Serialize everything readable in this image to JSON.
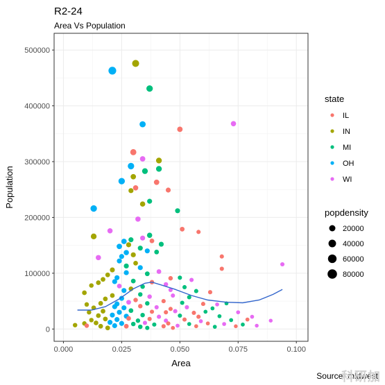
{
  "title": "R2-24",
  "subtitle": "Area Vs Population",
  "caption": "Source: midwest",
  "watermark": "科研加",
  "chart_data": {
    "type": "scatter",
    "xlabel": "Area",
    "ylabel": "Population",
    "xlim": [
      -0.004,
      0.105
    ],
    "ylim": [
      -22000,
      530000
    ],
    "x_ticks": [
      0.0,
      0.025,
      0.05,
      0.075,
      0.1
    ],
    "x_tick_labels": [
      "0.000",
      "0.025",
      "0.050",
      "0.075",
      "0.100"
    ],
    "y_ticks": [
      0,
      100000,
      200000,
      300000,
      400000,
      500000
    ],
    "y_tick_labels": [
      "0",
      "100000",
      "200000",
      "300000",
      "400000",
      "500000"
    ],
    "grid": true,
    "legend_position": "right",
    "color_legend": {
      "title": "state",
      "entries": [
        {
          "name": "IL",
          "color": "#F8766D"
        },
        {
          "name": "IN",
          "color": "#A3A500"
        },
        {
          "name": "MI",
          "color": "#00BF7D"
        },
        {
          "name": "OH",
          "color": "#00B0F6"
        },
        {
          "name": "WI",
          "color": "#E76BF3"
        }
      ]
    },
    "size_legend": {
      "title": "popdensity",
      "breaks": [
        20000,
        40000,
        60000,
        80000
      ],
      "labels": [
        "20000",
        "40000",
        "60000",
        "80000"
      ]
    },
    "smooth_color": "#3366CC",
    "smooth": [
      {
        "x": 0.006,
        "y": 34000
      },
      {
        "x": 0.012,
        "y": 34000
      },
      {
        "x": 0.018,
        "y": 40000
      },
      {
        "x": 0.024,
        "y": 54000
      },
      {
        "x": 0.03,
        "y": 72000
      },
      {
        "x": 0.035,
        "y": 82000
      },
      {
        "x": 0.038,
        "y": 84000
      },
      {
        "x": 0.042,
        "y": 79000
      },
      {
        "x": 0.048,
        "y": 71000
      },
      {
        "x": 0.055,
        "y": 60000
      },
      {
        "x": 0.062,
        "y": 52000
      },
      {
        "x": 0.07,
        "y": 48000
      },
      {
        "x": 0.077,
        "y": 47000
      },
      {
        "x": 0.084,
        "y": 52000
      },
      {
        "x": 0.09,
        "y": 62000
      },
      {
        "x": 0.094,
        "y": 71000
      }
    ],
    "points": [
      {
        "state": "OH",
        "x": 0.021,
        "y": 463000,
        "d": 60000
      },
      {
        "state": "IN",
        "x": 0.031,
        "y": 476000,
        "d": 45000
      },
      {
        "state": "MI",
        "x": 0.037,
        "y": 431000,
        "d": 35000
      },
      {
        "state": "OH",
        "x": 0.034,
        "y": 367000,
        "d": 30000
      },
      {
        "state": "IL",
        "x": 0.05,
        "y": 358000,
        "d": 20000
      },
      {
        "state": "WI",
        "x": 0.073,
        "y": 368000,
        "d": 18000
      },
      {
        "state": "IL",
        "x": 0.03,
        "y": 317000,
        "d": 30000
      },
      {
        "state": "IN",
        "x": 0.041,
        "y": 302000,
        "d": 25000
      },
      {
        "state": "WI",
        "x": 0.034,
        "y": 305000,
        "d": 20000
      },
      {
        "state": "OH",
        "x": 0.029,
        "y": 292000,
        "d": 35000
      },
      {
        "state": "MI",
        "x": 0.035,
        "y": 283000,
        "d": 25000
      },
      {
        "state": "MI",
        "x": 0.041,
        "y": 287000,
        "d": 25000
      },
      {
        "state": "IN",
        "x": 0.03,
        "y": 273000,
        "d": 20000
      },
      {
        "state": "OH",
        "x": 0.025,
        "y": 265000,
        "d": 35000
      },
      {
        "state": "IL",
        "x": 0.04,
        "y": 263000,
        "d": 20000
      },
      {
        "state": "IL",
        "x": 0.031,
        "y": 253000,
        "d": 18000
      },
      {
        "state": "IN",
        "x": 0.029,
        "y": 248000,
        "d": 15000
      },
      {
        "state": "IL",
        "x": 0.045,
        "y": 249000,
        "d": 15000
      },
      {
        "state": "MI",
        "x": 0.037,
        "y": 229000,
        "d": 15000
      },
      {
        "state": "IN",
        "x": 0.034,
        "y": 224000,
        "d": 18000
      },
      {
        "state": "OH",
        "x": 0.013,
        "y": 216000,
        "d": 35000
      },
      {
        "state": "MI",
        "x": 0.049,
        "y": 212000,
        "d": 15000
      },
      {
        "state": "WI",
        "x": 0.032,
        "y": 197000,
        "d": 18000
      },
      {
        "state": "IL",
        "x": 0.051,
        "y": 179000,
        "d": 12000
      },
      {
        "state": "IL",
        "x": 0.058,
        "y": 174000,
        "d": 8000
      },
      {
        "state": "WI",
        "x": 0.02,
        "y": 176000,
        "d": 18000
      },
      {
        "state": "IN",
        "x": 0.013,
        "y": 166000,
        "d": 25000
      },
      {
        "state": "MI",
        "x": 0.037,
        "y": 168000,
        "d": 18000
      },
      {
        "state": "OH",
        "x": 0.026,
        "y": 157000,
        "d": 20000
      },
      {
        "state": "MI",
        "x": 0.029,
        "y": 160000,
        "d": 15000
      },
      {
        "state": "WI",
        "x": 0.034,
        "y": 163000,
        "d": 15000
      },
      {
        "state": "IL",
        "x": 0.038,
        "y": 158000,
        "d": 12000
      },
      {
        "state": "OH",
        "x": 0.024,
        "y": 148000,
        "d": 20000
      },
      {
        "state": "IN",
        "x": 0.028,
        "y": 151000,
        "d": 15000
      },
      {
        "state": "MI",
        "x": 0.033,
        "y": 145000,
        "d": 15000
      },
      {
        "state": "MI",
        "x": 0.042,
        "y": 152000,
        "d": 15000
      },
      {
        "state": "OH",
        "x": 0.027,
        "y": 137000,
        "d": 18000
      },
      {
        "state": "WI",
        "x": 0.015,
        "y": 128000,
        "d": 18000
      },
      {
        "state": "OH",
        "x": 0.025,
        "y": 130000,
        "d": 15000
      },
      {
        "state": "IN",
        "x": 0.03,
        "y": 133000,
        "d": 15000
      },
      {
        "state": "IL",
        "x": 0.068,
        "y": 130000,
        "d": 8000
      },
      {
        "state": "OH",
        "x": 0.036,
        "y": 140000,
        "d": 15000
      },
      {
        "state": "MI",
        "x": 0.04,
        "y": 138000,
        "d": 12000
      },
      {
        "state": "OH",
        "x": 0.024,
        "y": 122000,
        "d": 15000
      },
      {
        "state": "IN",
        "x": 0.031,
        "y": 118000,
        "d": 12000
      },
      {
        "state": "WI",
        "x": 0.094,
        "y": 116000,
        "d": 8000
      },
      {
        "state": "MI",
        "x": 0.027,
        "y": 113000,
        "d": 15000
      },
      {
        "state": "IN",
        "x": 0.021,
        "y": 106000,
        "d": 15000
      },
      {
        "state": "OH",
        "x": 0.033,
        "y": 110000,
        "d": 15000
      },
      {
        "state": "IL",
        "x": 0.068,
        "y": 108000,
        "d": 8000
      },
      {
        "state": "IN",
        "x": 0.019,
        "y": 97000,
        "d": 12000
      },
      {
        "state": "OH",
        "x": 0.027,
        "y": 101000,
        "d": 15000
      },
      {
        "state": "MI",
        "x": 0.036,
        "y": 99000,
        "d": 12000
      },
      {
        "state": "WI",
        "x": 0.041,
        "y": 103000,
        "d": 12000
      },
      {
        "state": "IN",
        "x": 0.017,
        "y": 89000,
        "d": 12000
      },
      {
        "state": "OH",
        "x": 0.023,
        "y": 92000,
        "d": 15000
      },
      {
        "state": "MI",
        "x": 0.03,
        "y": 86000,
        "d": 12000
      },
      {
        "state": "IL",
        "x": 0.046,
        "y": 91000,
        "d": 10000
      },
      {
        "state": "MI",
        "x": 0.05,
        "y": 92000,
        "d": 8000
      },
      {
        "state": "WI",
        "x": 0.055,
        "y": 88000,
        "d": 8000
      },
      {
        "state": "IN",
        "x": 0.015,
        "y": 83000,
        "d": 12000
      },
      {
        "state": "OH",
        "x": 0.022,
        "y": 85000,
        "d": 15000
      },
      {
        "state": "IL",
        "x": 0.038,
        "y": 84000,
        "d": 10000
      },
      {
        "state": "WI",
        "x": 0.044,
        "y": 80000,
        "d": 10000
      },
      {
        "state": "IN",
        "x": 0.012,
        "y": 78000,
        "d": 10000
      },
      {
        "state": "WI",
        "x": 0.024,
        "y": 77000,
        "d": 12000
      },
      {
        "state": "MI",
        "x": 0.034,
        "y": 76000,
        "d": 10000
      },
      {
        "state": "MI",
        "x": 0.052,
        "y": 75000,
        "d": 8000
      },
      {
        "state": "IN",
        "x": 0.009,
        "y": 65000,
        "d": 12000
      },
      {
        "state": "OH",
        "x": 0.026,
        "y": 69000,
        "d": 15000
      },
      {
        "state": "IN",
        "x": 0.029,
        "y": 72000,
        "d": 12000
      },
      {
        "state": "WI",
        "x": 0.046,
        "y": 70000,
        "d": 8000
      },
      {
        "state": "MI",
        "x": 0.057,
        "y": 68000,
        "d": 8000
      },
      {
        "state": "IL",
        "x": 0.063,
        "y": 66000,
        "d": 8000
      },
      {
        "state": "IN",
        "x": 0.021,
        "y": 60000,
        "d": 12000
      },
      {
        "state": "MI",
        "x": 0.033,
        "y": 62000,
        "d": 10000
      },
      {
        "state": "WI",
        "x": 0.037,
        "y": 58000,
        "d": 10000
      },
      {
        "state": "WI",
        "x": 0.047,
        "y": 60000,
        "d": 8000
      },
      {
        "state": "MI",
        "x": 0.054,
        "y": 57000,
        "d": 8000
      },
      {
        "state": "IN",
        "x": 0.018,
        "y": 54000,
        "d": 12000
      },
      {
        "state": "OH",
        "x": 0.025,
        "y": 55000,
        "d": 15000
      },
      {
        "state": "IL",
        "x": 0.031,
        "y": 52000,
        "d": 10000
      },
      {
        "state": "IL",
        "x": 0.043,
        "y": 50000,
        "d": 8000
      },
      {
        "state": "IN",
        "x": 0.01,
        "y": 44000,
        "d": 10000
      },
      {
        "state": "IN",
        "x": 0.016,
        "y": 46000,
        "d": 12000
      },
      {
        "state": "OH",
        "x": 0.023,
        "y": 45000,
        "d": 15000
      },
      {
        "state": "WI",
        "x": 0.028,
        "y": 48000,
        "d": 12000
      },
      {
        "state": "MI",
        "x": 0.036,
        "y": 46000,
        "d": 10000
      },
      {
        "state": "MI",
        "x": 0.051,
        "y": 47000,
        "d": 8000
      },
      {
        "state": "IL",
        "x": 0.06,
        "y": 45000,
        "d": 8000
      },
      {
        "state": "WI",
        "x": 0.066,
        "y": 44000,
        "d": 6000
      },
      {
        "state": "MI",
        "x": 0.07,
        "y": 46000,
        "d": 6000
      },
      {
        "state": "IN",
        "x": 0.013,
        "y": 38000,
        "d": 12000
      },
      {
        "state": "OH",
        "x": 0.022,
        "y": 40000,
        "d": 15000
      },
      {
        "state": "OH",
        "x": 0.026,
        "y": 38000,
        "d": 15000
      },
      {
        "state": "IL",
        "x": 0.033,
        "y": 41000,
        "d": 10000
      },
      {
        "state": "WI",
        "x": 0.04,
        "y": 39000,
        "d": 8000
      },
      {
        "state": "IL",
        "x": 0.046,
        "y": 36000,
        "d": 8000
      },
      {
        "state": "WI",
        "x": 0.053,
        "y": 39000,
        "d": 8000
      },
      {
        "state": "MI",
        "x": 0.064,
        "y": 37000,
        "d": 6000
      },
      {
        "state": "IN",
        "x": 0.011,
        "y": 30000,
        "d": 10000
      },
      {
        "state": "IN",
        "x": 0.017,
        "y": 32000,
        "d": 12000
      },
      {
        "state": "OH",
        "x": 0.024,
        "y": 30000,
        "d": 15000
      },
      {
        "state": "MI",
        "x": 0.029,
        "y": 33000,
        "d": 12000
      },
      {
        "state": "IL",
        "x": 0.038,
        "y": 31000,
        "d": 8000
      },
      {
        "state": "IL",
        "x": 0.044,
        "y": 30000,
        "d": 8000
      },
      {
        "state": "WI",
        "x": 0.048,
        "y": 32000,
        "d": 8000
      },
      {
        "state": "IL",
        "x": 0.056,
        "y": 29000,
        "d": 8000
      },
      {
        "state": "MI",
        "x": 0.061,
        "y": 31000,
        "d": 6000
      },
      {
        "state": "WI",
        "x": 0.075,
        "y": 30000,
        "d": 6000
      },
      {
        "state": "IN",
        "x": 0.015,
        "y": 24000,
        "d": 12000
      },
      {
        "state": "OH",
        "x": 0.021,
        "y": 25000,
        "d": 15000
      },
      {
        "state": "OH",
        "x": 0.027,
        "y": 23000,
        "d": 15000
      },
      {
        "state": "MI",
        "x": 0.034,
        "y": 25000,
        "d": 10000
      },
      {
        "state": "WI",
        "x": 0.041,
        "y": 22000,
        "d": 8000
      },
      {
        "state": "MI",
        "x": 0.05,
        "y": 24000,
        "d": 8000
      },
      {
        "state": "IL",
        "x": 0.058,
        "y": 22000,
        "d": 8000
      },
      {
        "state": "MI",
        "x": 0.067,
        "y": 23000,
        "d": 6000
      },
      {
        "state": "WI",
        "x": 0.081,
        "y": 22000,
        "d": 6000
      },
      {
        "state": "IN",
        "x": 0.012,
        "y": 16000,
        "d": 10000
      },
      {
        "state": "IN",
        "x": 0.018,
        "y": 18000,
        "d": 12000
      },
      {
        "state": "OH",
        "x": 0.023,
        "y": 17000,
        "d": 15000
      },
      {
        "state": "IL",
        "x": 0.028,
        "y": 19000,
        "d": 12000
      },
      {
        "state": "MI",
        "x": 0.032,
        "y": 15000,
        "d": 10000
      },
      {
        "state": "IL",
        "x": 0.037,
        "y": 18000,
        "d": 8000
      },
      {
        "state": "WI",
        "x": 0.044,
        "y": 15000,
        "d": 8000
      },
      {
        "state": "IL",
        "x": 0.052,
        "y": 17000,
        "d": 8000
      },
      {
        "state": "WI",
        "x": 0.059,
        "y": 14000,
        "d": 6000
      },
      {
        "state": "MI",
        "x": 0.072,
        "y": 16000,
        "d": 6000
      },
      {
        "state": "IL",
        "x": 0.079,
        "y": 17000,
        "d": 6000
      },
      {
        "state": "IN",
        "x": 0.009,
        "y": 10000,
        "d": 10000
      },
      {
        "state": "IN",
        "x": 0.014,
        "y": 11000,
        "d": 12000
      },
      {
        "state": "OH",
        "x": 0.02,
        "y": 12000,
        "d": 15000
      },
      {
        "state": "OH",
        "x": 0.025,
        "y": 10000,
        "d": 15000
      },
      {
        "state": "MI",
        "x": 0.03,
        "y": 9000,
        "d": 10000
      },
      {
        "state": "WI",
        "x": 0.035,
        "y": 11000,
        "d": 8000
      },
      {
        "state": "MI",
        "x": 0.039,
        "y": 8000,
        "d": 8000
      },
      {
        "state": "IL",
        "x": 0.045,
        "y": 10000,
        "d": 8000
      },
      {
        "state": "MI",
        "x": 0.054,
        "y": 9000,
        "d": 6000
      },
      {
        "state": "IL",
        "x": 0.062,
        "y": 10000,
        "d": 6000
      },
      {
        "state": "WI",
        "x": 0.069,
        "y": 9000,
        "d": 6000
      },
      {
        "state": "MI",
        "x": 0.077,
        "y": 8000,
        "d": 6000
      },
      {
        "state": "WI",
        "x": 0.089,
        "y": 15000,
        "d": 5000
      },
      {
        "state": "IN",
        "x": 0.005,
        "y": 7000,
        "d": 10000
      },
      {
        "state": "IL",
        "x": 0.01,
        "y": 6000,
        "d": 10000
      },
      {
        "state": "IN",
        "x": 0.016,
        "y": 5000,
        "d": 12000
      },
      {
        "state": "OH",
        "x": 0.022,
        "y": 6000,
        "d": 15000
      },
      {
        "state": "IL",
        "x": 0.027,
        "y": 5000,
        "d": 12000
      },
      {
        "state": "MI",
        "x": 0.033,
        "y": 4000,
        "d": 10000
      },
      {
        "state": "IL",
        "x": 0.043,
        "y": 5000,
        "d": 8000
      },
      {
        "state": "WI",
        "x": 0.049,
        "y": 6000,
        "d": 6000
      },
      {
        "state": "IL",
        "x": 0.057,
        "y": 5000,
        "d": 6000
      },
      {
        "state": "MI",
        "x": 0.065,
        "y": 4000,
        "d": 6000
      },
      {
        "state": "IL",
        "x": 0.074,
        "y": 5000,
        "d": 5000
      },
      {
        "state": "WI",
        "x": 0.083,
        "y": 6000,
        "d": 5000
      },
      {
        "state": "IN",
        "x": 0.019,
        "y": 2000,
        "d": 12000
      },
      {
        "state": "MI",
        "x": 0.036,
        "y": 2000,
        "d": 8000
      },
      {
        "state": "IL",
        "x": 0.047,
        "y": 2000,
        "d": 6000
      }
    ]
  }
}
